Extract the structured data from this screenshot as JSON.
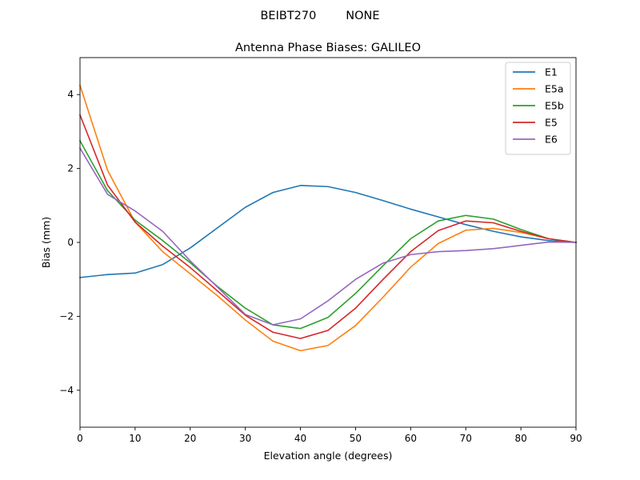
{
  "suptitle": "BEIBT270        NONE",
  "chart_data": {
    "type": "line",
    "title": "Antenna Phase Biases: GALILEO",
    "xlabel": "Elevation angle (degrees)",
    "ylabel": "Bias (mm)",
    "xlim": [
      0,
      90
    ],
    "ylim": [
      -5,
      5
    ],
    "xticks": [
      0,
      10,
      20,
      30,
      40,
      50,
      60,
      70,
      80,
      90
    ],
    "yticks": [
      -4,
      -2,
      0,
      2,
      4
    ],
    "grid": false,
    "legend_position": "upper right",
    "x": [
      0,
      5,
      10,
      15,
      20,
      25,
      30,
      35,
      40,
      45,
      50,
      55,
      60,
      65,
      70,
      75,
      80,
      85,
      90
    ],
    "series": [
      {
        "name": "E1",
        "color": "#1f77b4",
        "values": [
          -0.95,
          -0.87,
          -0.83,
          -0.6,
          -0.15,
          0.4,
          0.95,
          1.35,
          1.54,
          1.51,
          1.35,
          1.13,
          0.9,
          0.69,
          0.48,
          0.3,
          0.15,
          0.05,
          0.0
        ]
      },
      {
        "name": "E5a",
        "color": "#ff7f0e",
        "values": [
          4.25,
          1.95,
          0.55,
          -0.25,
          -0.85,
          -1.45,
          -2.1,
          -2.67,
          -2.93,
          -2.79,
          -2.25,
          -1.48,
          -0.67,
          -0.03,
          0.33,
          0.38,
          0.27,
          0.1,
          0.0
        ]
      },
      {
        "name": "E5b",
        "color": "#2ca02c",
        "values": [
          2.75,
          1.4,
          0.6,
          0.05,
          -0.55,
          -1.2,
          -1.78,
          -2.23,
          -2.33,
          -2.03,
          -1.38,
          -0.63,
          0.1,
          0.58,
          0.73,
          0.63,
          0.35,
          0.1,
          0.0
        ]
      },
      {
        "name": "E5",
        "color": "#d62728",
        "values": [
          3.45,
          1.55,
          0.55,
          -0.1,
          -0.68,
          -1.32,
          -1.97,
          -2.43,
          -2.6,
          -2.38,
          -1.78,
          -1.0,
          -0.25,
          0.32,
          0.58,
          0.53,
          0.3,
          0.1,
          0.0
        ]
      },
      {
        "name": "E6",
        "color": "#9467bd",
        "values": [
          2.55,
          1.3,
          0.85,
          0.3,
          -0.5,
          -1.22,
          -1.95,
          -2.23,
          -2.07,
          -1.58,
          -1.0,
          -0.56,
          -0.33,
          -0.25,
          -0.22,
          -0.17,
          -0.08,
          0.01,
          0.0
        ]
      }
    ]
  }
}
